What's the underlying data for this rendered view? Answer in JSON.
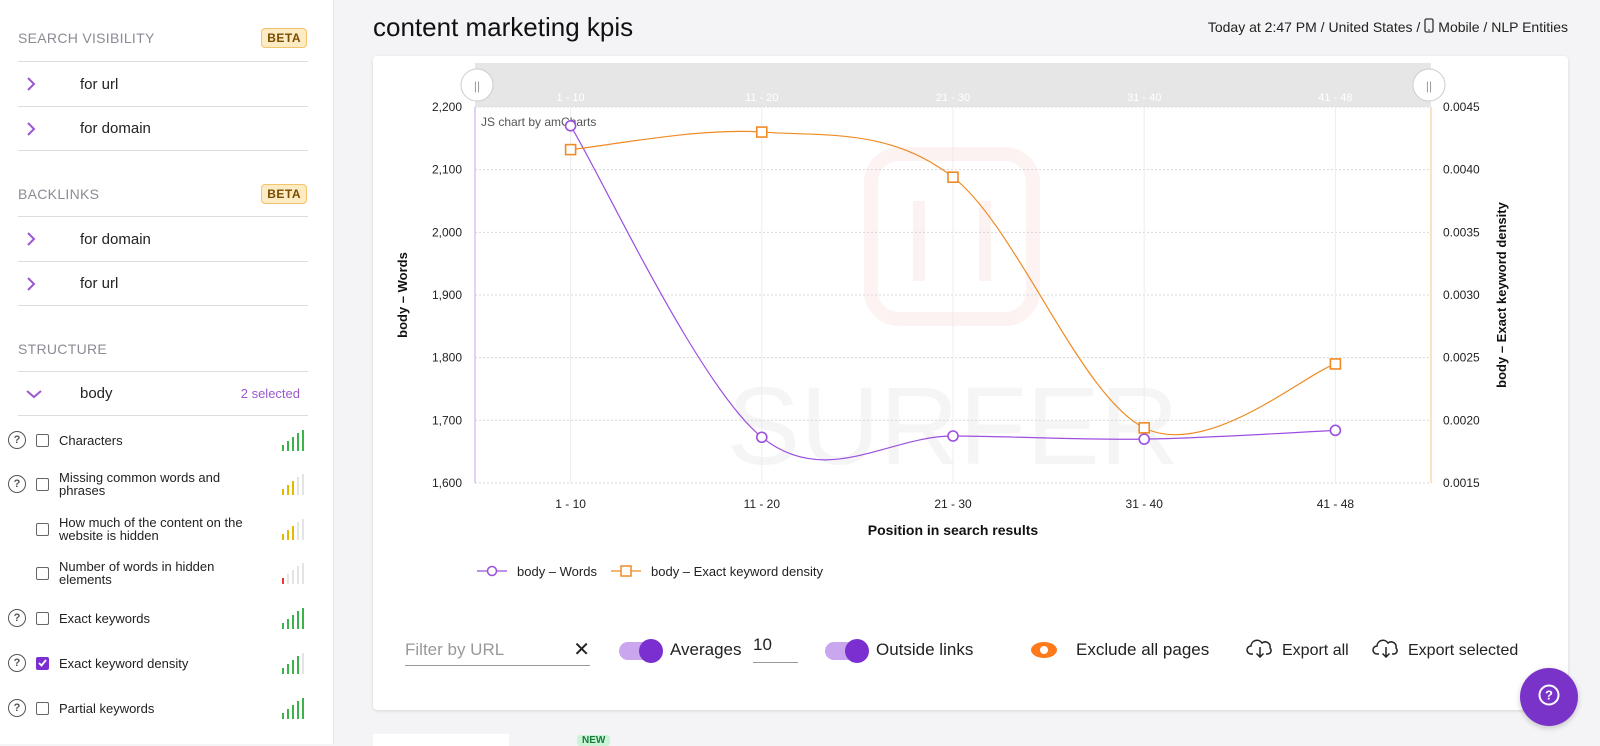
{
  "sidebar": {
    "search_visibility": {
      "title": "SEARCH VISIBILITY",
      "badge": "BETA",
      "items": [
        "for url",
        "for domain"
      ]
    },
    "backlinks": {
      "title": "BACKLINKS",
      "badge": "BETA",
      "items": [
        "for domain",
        "for url"
      ]
    },
    "structure": {
      "title": "STRUCTURE",
      "item": "body",
      "selected": "2 selected"
    },
    "metrics": [
      {
        "label": "Characters",
        "help": true,
        "checked": false,
        "signal": "green"
      },
      {
        "label": "Missing common words and phrases",
        "help": true,
        "checked": false,
        "signal": "yellow"
      },
      {
        "label": "How much of the content on the website is hidden",
        "help": false,
        "checked": false,
        "signal": "yellow"
      },
      {
        "label": "Number of words in hidden elements",
        "help": false,
        "checked": false,
        "signal": "red"
      },
      {
        "label": "Exact keywords",
        "help": true,
        "checked": false,
        "signal": "green"
      },
      {
        "label": "Exact keyword density",
        "help": true,
        "checked": true,
        "signal": "green"
      },
      {
        "label": "Partial keywords",
        "help": true,
        "checked": false,
        "signal": "green"
      }
    ]
  },
  "header": {
    "title": "content marketing kpis",
    "meta_left": "Today at 2:47 PM / United States /",
    "meta_right": "Mobile / NLP Entities"
  },
  "chart_data": {
    "type": "line",
    "categories": [
      "1 - 10",
      "11 - 20",
      "21 - 30",
      "31 - 40",
      "41 - 48"
    ],
    "series": [
      {
        "name": "body – Words",
        "axis": "left",
        "color": "#9b4fe0",
        "values": [
          2170,
          1673,
          1675,
          1670,
          1684
        ]
      },
      {
        "name": "body – Exact keyword density",
        "axis": "right",
        "color": "#f08a24",
        "values": [
          0.00416,
          0.0043,
          0.00394,
          0.00194,
          0.00245
        ]
      }
    ],
    "xlabel": "Position in search results",
    "ylabel_left": "body – Words",
    "ylabel_right": "body – Exact keyword density",
    "ylim_left": [
      1600,
      2200
    ],
    "ylim_right": [
      0.0015,
      0.0045
    ],
    "yticks_left": [
      "1,600",
      "1,700",
      "1,800",
      "1,900",
      "2,000",
      "2,100",
      "2,200"
    ],
    "yticks_right": [
      "0.0015",
      "0.0020",
      "0.0025",
      "0.0030",
      "0.0035",
      "0.0040",
      "0.0045"
    ],
    "credit": "JS chart by amCharts",
    "watermark": "SURFER"
  },
  "controls": {
    "filter_placeholder": "Filter by URL",
    "averages_label": "Averages",
    "averages_value": "10",
    "outside_links_label": "Outside links",
    "exclude_label": "Exclude all pages",
    "export_all": "Export all",
    "export_selected": "Export selected"
  },
  "footer": {
    "new_badge": "NEW"
  },
  "colors": {
    "accent": "#7b2fd0",
    "orange": "#f08a24"
  }
}
